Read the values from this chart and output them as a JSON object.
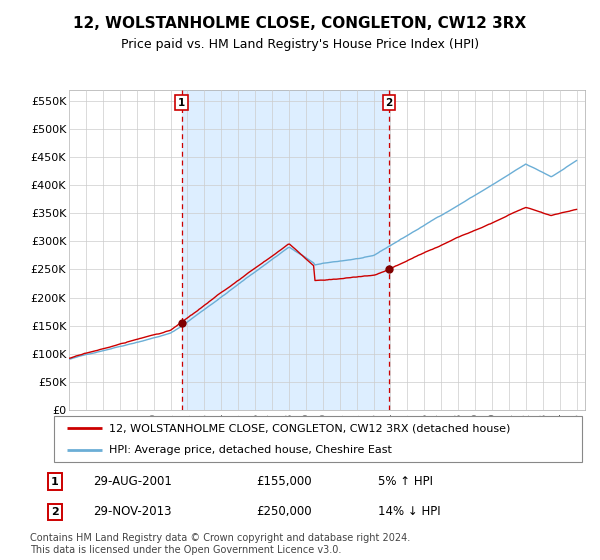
{
  "title": "12, WOLSTANHOLME CLOSE, CONGLETON, CW12 3RX",
  "subtitle": "Price paid vs. HM Land Registry's House Price Index (HPI)",
  "ylabel_ticks": [
    "£0",
    "£50K",
    "£100K",
    "£150K",
    "£200K",
    "£250K",
    "£300K",
    "£350K",
    "£400K",
    "£450K",
    "£500K",
    "£550K"
  ],
  "ytick_values": [
    0,
    50000,
    100000,
    150000,
    200000,
    250000,
    300000,
    350000,
    400000,
    450000,
    500000,
    550000
  ],
  "ylim": [
    0,
    570000
  ],
  "xlim_start": 1995.0,
  "xlim_end": 2025.5,
  "xtick_years": [
    1995,
    1996,
    1997,
    1998,
    1999,
    2000,
    2001,
    2002,
    2003,
    2004,
    2005,
    2006,
    2007,
    2008,
    2009,
    2010,
    2011,
    2012,
    2013,
    2014,
    2015,
    2016,
    2017,
    2018,
    2019,
    2020,
    2021,
    2022,
    2023,
    2024,
    2025
  ],
  "hpi_color": "#6baed6",
  "price_color": "#cc0000",
  "marker_color": "#800000",
  "vline_color": "#cc0000",
  "shade_color": "#ddeeff",
  "grid_color": "#cccccc",
  "bg_color": "#ffffff",
  "legend_label_price": "12, WOLSTANHOLME CLOSE, CONGLETON, CW12 3RX (detached house)",
  "legend_label_hpi": "HPI: Average price, detached house, Cheshire East",
  "event1_date_num": 2001.66,
  "event1_price": 155000,
  "event1_label": "29-AUG-2001",
  "event1_amount": "£155,000",
  "event1_pct": "5% ↑ HPI",
  "event2_date_num": 2013.91,
  "event2_price": 250000,
  "event2_label": "29-NOV-2013",
  "event2_amount": "£250,000",
  "event2_pct": "14% ↓ HPI",
  "footer": "Contains HM Land Registry data © Crown copyright and database right 2024.\nThis data is licensed under the Open Government Licence v3.0.",
  "title_fontsize": 11,
  "subtitle_fontsize": 9,
  "tick_fontsize": 8,
  "legend_fontsize": 8,
  "footer_fontsize": 7
}
